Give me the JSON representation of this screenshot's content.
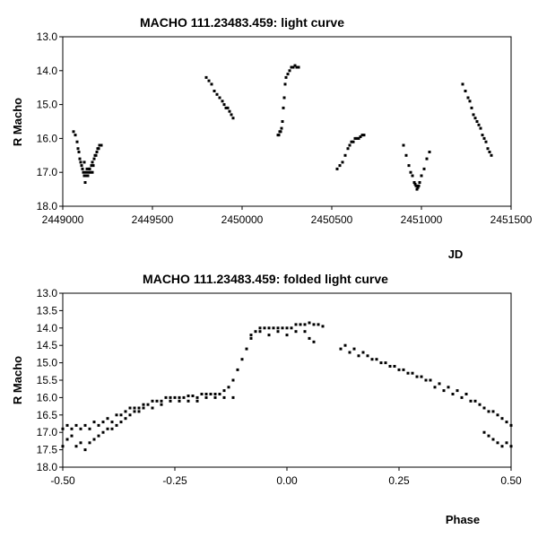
{
  "chart_data": [
    {
      "type": "scatter",
      "title": "MACHO 111.23483.459: light curve",
      "xlabel": "JD",
      "ylabel": "R Macho",
      "xlim": [
        2449000,
        2451500
      ],
      "ylim": [
        13.0,
        18.0
      ],
      "y_inverted": true,
      "xticks": [
        2449000,
        2449500,
        2450000,
        2450500,
        2451000,
        2451500
      ],
      "xtick_labels": [
        "2449000",
        "2449500",
        "2450000",
        "2450500",
        "2451000",
        "2451500"
      ],
      "yticks": [
        13.0,
        14.0,
        15.0,
        16.0,
        17.0,
        18.0
      ],
      "ytick_labels": [
        "13.0",
        "14.0",
        "15.0",
        "16.0",
        "17.0",
        "18.0"
      ],
      "marker_color": "#000000",
      "series": [
        {
          "name": "R Macho",
          "x": [
            2449060,
            2449070,
            2449080,
            2449085,
            2449090,
            2449095,
            2449100,
            2449105,
            2449110,
            2449115,
            2449120,
            2449125,
            2449130,
            2449135,
            2449140,
            2449145,
            2449150,
            2449155,
            2449160,
            2449165,
            2449170,
            2449175,
            2449180,
            2449185,
            2449190,
            2449195,
            2449200,
            2449205,
            2449210,
            2449215,
            2449120,
            2449135,
            2449150,
            2449165,
            2449800,
            2449815,
            2449830,
            2449845,
            2449860,
            2449875,
            2449890,
            2449900,
            2449910,
            2449920,
            2449930,
            2449940,
            2449950,
            2450200,
            2450205,
            2450210,
            2450215,
            2450220,
            2450225,
            2450230,
            2450235,
            2450240,
            2450245,
            2450255,
            2450265,
            2450275,
            2450285,
            2450295,
            2450305,
            2450315,
            2450530,
            2450545,
            2450560,
            2450575,
            2450590,
            2450600,
            2450610,
            2450620,
            2450630,
            2450640,
            2450650,
            2450660,
            2450670,
            2450680,
            2450900,
            2450915,
            2450930,
            2450940,
            2450950,
            2450960,
            2450965,
            2450970,
            2450975,
            2450980,
            2450985,
            2450990,
            2451000,
            2451015,
            2451030,
            2451045,
            2451230,
            2451245,
            2451260,
            2451270,
            2451280,
            2451290,
            2451300,
            2451310,
            2451320,
            2451330,
            2451340,
            2451350,
            2451360,
            2451370,
            2451380,
            2451390
          ],
          "y": [
            15.8,
            15.9,
            16.1,
            16.3,
            16.4,
            16.6,
            16.7,
            16.8,
            16.9,
            17.0,
            17.1,
            17.3,
            17.0,
            16.9,
            17.1,
            17.0,
            16.9,
            17.0,
            16.8,
            16.7,
            16.8,
            16.6,
            16.5,
            16.5,
            16.4,
            16.3,
            16.3,
            16.2,
            16.2,
            16.2,
            16.7,
            17.1,
            16.9,
            17.0,
            14.2,
            14.3,
            14.4,
            14.6,
            14.7,
            14.8,
            14.9,
            15.0,
            15.1,
            15.1,
            15.2,
            15.3,
            15.4,
            15.9,
            15.9,
            15.8,
            15.8,
            15.7,
            15.5,
            15.1,
            14.8,
            14.4,
            14.2,
            14.1,
            14.0,
            13.9,
            13.9,
            13.85,
            13.9,
            13.9,
            16.9,
            16.8,
            16.7,
            16.5,
            16.3,
            16.2,
            16.1,
            16.1,
            16.0,
            16.0,
            16.0,
            15.95,
            15.9,
            15.9,
            16.2,
            16.5,
            16.8,
            17.0,
            17.1,
            17.3,
            17.35,
            17.4,
            17.5,
            17.45,
            17.4,
            17.3,
            17.1,
            16.9,
            16.6,
            16.4,
            14.4,
            14.6,
            14.8,
            14.9,
            15.1,
            15.3,
            15.4,
            15.5,
            15.6,
            15.7,
            15.9,
            16.0,
            16.1,
            16.3,
            16.4,
            16.5
          ]
        }
      ]
    },
    {
      "type": "scatter",
      "title": "MACHO 111.23483.459: folded light curve",
      "xlabel": "Phase",
      "ylabel": "R Macho",
      "xlim": [
        -0.5,
        0.5
      ],
      "ylim": [
        13.0,
        18.0
      ],
      "y_inverted": true,
      "xticks": [
        -0.5,
        -0.25,
        0.0,
        0.25,
        0.5
      ],
      "xtick_labels": [
        "-0.50",
        "-0.25",
        "0.00",
        "0.25",
        "0.50"
      ],
      "yticks": [
        13.0,
        13.5,
        14.0,
        14.5,
        15.0,
        15.5,
        16.0,
        16.5,
        17.0,
        17.5,
        18.0
      ],
      "ytick_labels": [
        "13.0",
        "13.5",
        "14.0",
        "14.5",
        "15.0",
        "15.5",
        "16.0",
        "16.5",
        "17.0",
        "17.5",
        "18.0"
      ],
      "marker_color": "#000000",
      "series": [
        {
          "name": "R Macho",
          "x": [
            -0.5,
            -0.49,
            -0.48,
            -0.47,
            -0.46,
            -0.45,
            -0.44,
            -0.43,
            -0.42,
            -0.41,
            -0.4,
            -0.39,
            -0.38,
            -0.37,
            -0.36,
            -0.35,
            -0.34,
            -0.33,
            -0.32,
            -0.31,
            -0.3,
            -0.29,
            -0.28,
            -0.27,
            -0.26,
            -0.25,
            -0.24,
            -0.23,
            -0.22,
            -0.21,
            -0.2,
            -0.19,
            -0.18,
            -0.17,
            -0.16,
            -0.15,
            -0.14,
            -0.13,
            -0.12,
            -0.11,
            -0.1,
            -0.09,
            -0.08,
            -0.07,
            -0.06,
            -0.05,
            -0.04,
            -0.03,
            -0.02,
            -0.01,
            0.0,
            0.01,
            0.02,
            0.03,
            0.04,
            0.05,
            0.06,
            0.07,
            0.08,
            -0.5,
            -0.49,
            -0.48,
            -0.47,
            -0.46,
            -0.45,
            -0.44,
            -0.43,
            -0.42,
            -0.41,
            -0.4,
            -0.39,
            -0.38,
            -0.37,
            -0.36,
            -0.35,
            -0.34,
            -0.33,
            -0.32,
            -0.3,
            -0.28,
            -0.26,
            -0.24,
            -0.22,
            -0.2,
            -0.18,
            -0.16,
            -0.14,
            -0.12,
            -0.08,
            -0.06,
            -0.04,
            -0.02,
            0.0,
            0.02,
            0.04,
            0.05,
            0.06,
            0.12,
            0.14,
            0.16,
            0.18,
            0.2,
            0.22,
            0.24,
            0.26,
            0.28,
            0.3,
            0.32,
            0.34,
            0.36,
            0.38,
            0.4,
            0.42,
            0.44,
            0.46,
            0.48,
            0.5,
            0.13,
            0.15,
            0.17,
            0.19,
            0.21,
            0.23,
            0.25,
            0.27,
            0.29,
            0.31,
            0.33,
            0.35,
            0.37,
            0.39,
            0.41,
            0.43,
            0.45,
            0.47,
            0.49,
            0.44,
            0.45,
            0.46,
            0.47,
            0.48,
            0.49,
            0.5
          ],
          "y": [
            16.9,
            16.8,
            16.9,
            16.8,
            16.9,
            16.8,
            16.9,
            16.7,
            16.8,
            16.7,
            16.6,
            16.7,
            16.5,
            16.5,
            16.4,
            16.3,
            16.3,
            16.3,
            16.2,
            16.2,
            16.1,
            16.1,
            16.1,
            16.0,
            16.0,
            16.0,
            16.0,
            16.0,
            15.95,
            15.95,
            16.0,
            15.9,
            15.9,
            15.9,
            15.9,
            15.9,
            15.8,
            15.7,
            15.5,
            15.2,
            14.9,
            14.6,
            14.3,
            14.1,
            14.0,
            14.0,
            14.0,
            14.0,
            14.0,
            14.0,
            14.0,
            14.0,
            13.9,
            13.9,
            13.9,
            13.85,
            13.9,
            13.9,
            13.95,
            17.4,
            17.2,
            17.1,
            17.4,
            17.3,
            17.5,
            17.3,
            17.2,
            17.1,
            17.0,
            16.9,
            16.9,
            16.8,
            16.7,
            16.6,
            16.5,
            16.4,
            16.4,
            16.3,
            16.3,
            16.2,
            16.1,
            16.1,
            16.1,
            16.1,
            16.0,
            16.0,
            16.0,
            16.0,
            14.2,
            14.1,
            14.2,
            14.1,
            14.2,
            14.1,
            14.1,
            14.3,
            14.4,
            14.6,
            14.7,
            14.8,
            14.8,
            14.9,
            15.0,
            15.1,
            15.2,
            15.3,
            15.4,
            15.5,
            15.6,
            15.7,
            15.8,
            15.9,
            16.1,
            16.3,
            16.4,
            16.6,
            16.8,
            14.5,
            14.6,
            14.7,
            14.9,
            15.0,
            15.1,
            15.2,
            15.3,
            15.4,
            15.5,
            15.7,
            15.8,
            15.9,
            16.0,
            16.1,
            16.2,
            16.4,
            16.5,
            16.7,
            17.0,
            17.1,
            17.2,
            17.3,
            17.4,
            17.3,
            17.4
          ]
        }
      ]
    }
  ]
}
